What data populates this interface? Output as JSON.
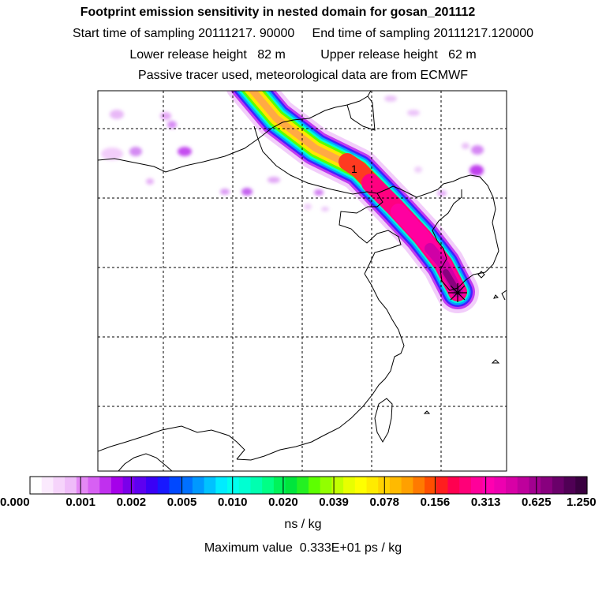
{
  "header": {
    "title": "Footprint emission sensitivity in nested domain for gosan_201112",
    "sampling_line": "Start time of sampling 20111217. 90000     End time of sampling 20111217.120000",
    "height_line": "Lower release height   82 m          Upper release height   62 m",
    "tracer_line": "Passive tracer used, meteorological data are from ECMWF"
  },
  "map": {
    "contour_label": "1",
    "receptor_marker": "asterisk-icon"
  },
  "colorbar": {
    "tick_labels": [
      "0.000",
      "0.001",
      "0.002",
      "0.005",
      "0.010",
      "0.020",
      "0.039",
      "0.078",
      "0.156",
      "0.313",
      "0.625",
      "1.250"
    ],
    "colors": [
      "#ffffff",
      "#fbeafd",
      "#f6d4fb",
      "#efbcf9",
      "#e488f5",
      "#d760f3",
      "#c030ee",
      "#a500ea",
      "#7a00ea",
      "#5d00f0",
      "#3a00f6",
      "#1818ff",
      "#0048ff",
      "#0070ff",
      "#0098ff",
      "#00c2ff",
      "#00ecff",
      "#00ffee",
      "#00ffd2",
      "#00ffb0",
      "#00ff86",
      "#00f35a",
      "#00e53c",
      "#24f022",
      "#5dff00",
      "#92ff00",
      "#c2ff00",
      "#e8ff00",
      "#ffff00",
      "#ffeb00",
      "#ffd200",
      "#ffba00",
      "#ffa000",
      "#ff7a00",
      "#ff4e00",
      "#ff1e1e",
      "#ff0050",
      "#ff0078",
      "#ff009a",
      "#ff00b0",
      "#ee00b0",
      "#d800a6",
      "#be009c",
      "#a20090",
      "#88007e",
      "#6a006a",
      "#500055",
      "#3a0040"
    ],
    "units": "ns / kg",
    "max_label": "Maximum value  0.333E+01 ps / kg"
  }
}
